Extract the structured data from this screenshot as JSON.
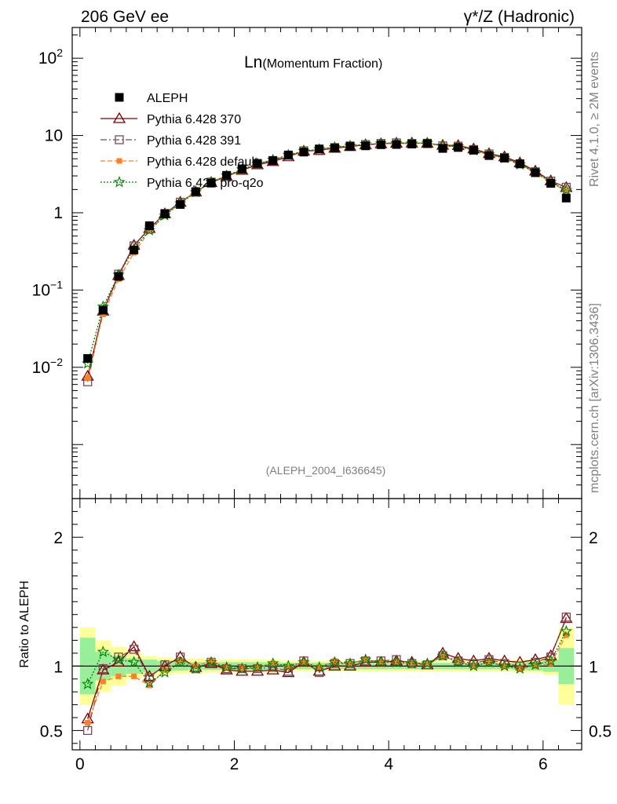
{
  "header": {
    "left": "206 GeV ee",
    "right": "γ*/Z (Hadronic)"
  },
  "side_text": {
    "rivet": "Rivet 4.1.0, ≥ 2M events",
    "source": "mcplots.cern.ch [arXiv:1306.3436]"
  },
  "colors": {
    "data": "#000000",
    "p370": "#800000",
    "p391": "#7a4a55",
    "pdefault": "#ff7f27",
    "pperugia": "#008000",
    "band_inner": "#99ee99",
    "band_outer": "#ffff99"
  },
  "chart_data": {
    "type": "line",
    "title_main": "Ln",
    "title_sub": "(Momentum Fraction)",
    "analysis_id": "(ALEPH_2004_I636645)",
    "xlim": [
      -0.1,
      6.5
    ],
    "ylim": [
      0.0002,
      250
    ],
    "yscale": "log",
    "x_ticks": [
      "0",
      "2",
      "4",
      "6"
    ],
    "y_ticks": [
      {
        "v": 0.01,
        "base": "10",
        "exp": "−2"
      },
      {
        "v": 0.1,
        "base": "10",
        "exp": "−1"
      },
      {
        "v": 1,
        "base": "1",
        "exp": ""
      },
      {
        "v": 10,
        "base": "10",
        "exp": ""
      },
      {
        "v": 100,
        "base": "10",
        "exp": "2"
      }
    ],
    "x": [
      0.1,
      0.3,
      0.5,
      0.7,
      0.9,
      1.1,
      1.3,
      1.5,
      1.7,
      1.9,
      2.1,
      2.3,
      2.5,
      2.7,
      2.9,
      3.1,
      3.3,
      3.5,
      3.7,
      3.9,
      4.1,
      4.3,
      4.5,
      4.7,
      4.9,
      5.1,
      5.3,
      5.5,
      5.7,
      5.9,
      6.1,
      6.3
    ],
    "legend": [
      "ALEPH",
      "Pythia 6.428 370",
      "Pythia 6.428 391",
      "Pythia 6.428 default",
      "Pythia 6.428 pro-q2o"
    ],
    "data": [
      0.013,
      0.055,
      0.15,
      0.33,
      0.68,
      0.97,
      1.28,
      1.88,
      2.42,
      3.05,
      3.7,
      4.35,
      4.75,
      5.6,
      6.1,
      6.7,
      6.85,
      7.2,
      7.35,
      7.6,
      7.65,
      7.75,
      7.85,
      6.8,
      7.0,
      6.45,
      5.5,
      5.1,
      4.3,
      3.3,
      2.4,
      1.55
    ],
    "ratio_ylabel": "Ratio to ALEPH",
    "ratio_ylim": [
      0.35,
      2.3
    ],
    "ratio_ticks": [
      "0.5",
      "1",
      "2"
    ],
    "series": [
      {
        "name": "Pythia 6.428 370",
        "ratio": [
          0.59,
          0.97,
          1.03,
          1.15,
          0.92,
          1.0,
          1.07,
          0.99,
          1.02,
          0.97,
          0.96,
          0.96,
          0.97,
          0.95,
          1.03,
          0.96,
          1.0,
          1.0,
          1.03,
          1.03,
          1.04,
          1.03,
          1.01,
          1.1,
          1.06,
          1.04,
          1.06,
          1.04,
          1.03,
          1.05,
          1.08,
          1.37
        ]
      },
      {
        "name": "Pythia 6.428 391",
        "ratio": [
          0.5,
          0.98,
          1.07,
          1.13,
          0.91,
          1.01,
          1.07,
          0.98,
          1.03,
          0.98,
          0.98,
          0.98,
          0.99,
          0.96,
          1.04,
          0.95,
          1.02,
          1.02,
          1.04,
          1.04,
          1.05,
          1.02,
          1.01,
          1.08,
          1.04,
          1.02,
          1.05,
          1.02,
          1.0,
          1.03,
          1.07,
          1.38
        ]
      },
      {
        "name": "Pythia 6.428 default",
        "ratio": [
          0.56,
          0.88,
          0.92,
          0.92,
          0.85,
          0.97,
          1.04,
          1.0,
          1.04,
          0.99,
          0.99,
          0.99,
          1.02,
          0.99,
          1.03,
          0.99,
          1.04,
          1.02,
          1.05,
          1.03,
          1.03,
          1.02,
          1.02,
          1.07,
          1.04,
          1.0,
          1.03,
          1.0,
          0.98,
          1.0,
          1.02,
          1.24
        ]
      },
      {
        "name": "Pythia 6.428 pro-q2o",
        "ratio": [
          0.86,
          1.11,
          1.05,
          1.03,
          0.87,
          0.95,
          1.03,
          0.98,
          1.03,
          0.99,
          0.98,
          0.99,
          1.02,
          1.0,
          1.03,
          0.99,
          1.03,
          1.02,
          1.05,
          1.03,
          1.03,
          1.02,
          1.02,
          1.08,
          1.03,
          1.0,
          1.03,
          1.0,
          0.98,
          1.01,
          1.04,
          1.27
        ]
      }
    ],
    "band_inner": [
      0.22,
      0.11,
      0.08,
      0.06,
      0.05,
      0.04,
      0.035,
      0.03,
      0.03,
      0.03,
      0.03,
      0.03,
      0.03,
      0.025,
      0.025,
      0.025,
      0.025,
      0.025,
      0.025,
      0.025,
      0.025,
      0.025,
      0.025,
      0.025,
      0.025,
      0.025,
      0.025,
      0.025,
      0.03,
      0.035,
      0.045,
      0.14
    ],
    "band_outer": [
      0.3,
      0.2,
      0.15,
      0.1,
      0.08,
      0.07,
      0.06,
      0.06,
      0.05,
      0.05,
      0.05,
      0.05,
      0.05,
      0.04,
      0.04,
      0.04,
      0.04,
      0.04,
      0.04,
      0.04,
      0.04,
      0.04,
      0.04,
      0.04,
      0.04,
      0.04,
      0.04,
      0.04,
      0.05,
      0.05,
      0.07,
      0.3
    ]
  }
}
